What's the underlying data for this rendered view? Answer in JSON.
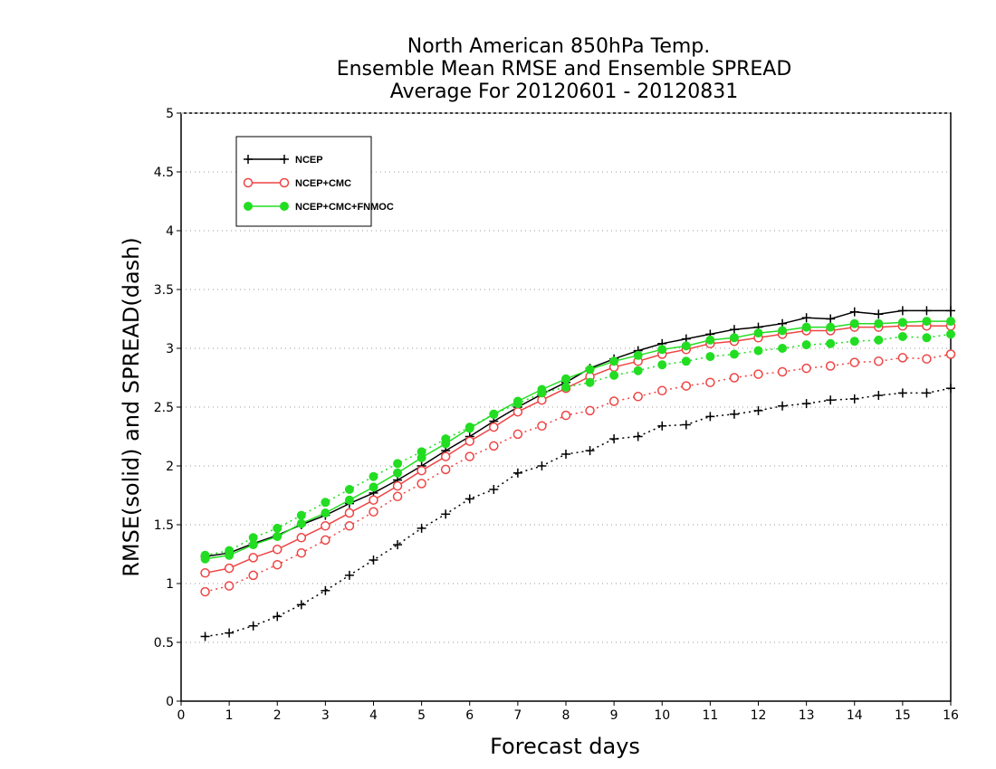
{
  "chart_data": {
    "type": "line",
    "title_lines": [
      "North American 850hPa Temp.",
      "Ensemble Mean RMSE and Ensemble SPREAD",
      "Average For 20120601 - 20120831"
    ],
    "xlabel": "Forecast days",
    "ylabel": "RMSE(solid) and SPREAD(dash)",
    "xlim": [
      0,
      16
    ],
    "ylim": [
      0,
      5
    ],
    "x_ticks": [
      "0",
      "1",
      "2",
      "3",
      "4",
      "5",
      "6",
      "7",
      "8",
      "9",
      "10",
      "11",
      "12",
      "13",
      "14",
      "15",
      "16"
    ],
    "y_ticks": [
      "0",
      "0.5",
      "1",
      "1.5",
      "2",
      "2.5",
      "3",
      "3.5",
      "4",
      "4.5",
      "5"
    ],
    "grid": "horizontal dotted",
    "legend_position": "top-left",
    "x": [
      0.5,
      1,
      1.5,
      2,
      2.5,
      3,
      3.5,
      4,
      4.5,
      5,
      5.5,
      6,
      6.5,
      7,
      7.5,
      8,
      8.5,
      9,
      9.5,
      10,
      10.5,
      11,
      11.5,
      12,
      12.5,
      13,
      13.5,
      14,
      14.5,
      15,
      15.5,
      16
    ],
    "series": [
      {
        "name": "NCEP",
        "color": "#000000",
        "marker": "plus",
        "rmse": [
          1.23,
          1.26,
          1.34,
          1.41,
          1.5,
          1.58,
          1.68,
          1.77,
          1.88,
          2.0,
          2.13,
          2.25,
          2.38,
          2.5,
          2.61,
          2.71,
          2.83,
          2.91,
          2.98,
          3.04,
          3.08,
          3.12,
          3.16,
          3.18,
          3.21,
          3.26,
          3.25,
          3.31,
          3.29,
          3.32,
          3.32,
          3.32
        ],
        "spread": [
          0.55,
          0.58,
          0.64,
          0.72,
          0.82,
          0.94,
          1.07,
          1.2,
          1.33,
          1.47,
          1.59,
          1.72,
          1.8,
          1.94,
          2.0,
          2.1,
          2.13,
          2.23,
          2.25,
          2.34,
          2.35,
          2.42,
          2.44,
          2.47,
          2.51,
          2.53,
          2.56,
          2.57,
          2.6,
          2.62,
          2.62,
          2.66
        ]
      },
      {
        "name": "NCEP+CMC",
        "color": "#ee4444",
        "marker": "open-circle",
        "rmse": [
          1.09,
          1.13,
          1.22,
          1.29,
          1.39,
          1.49,
          1.6,
          1.71,
          1.83,
          1.96,
          2.08,
          2.21,
          2.33,
          2.46,
          2.56,
          2.66,
          2.76,
          2.84,
          2.89,
          2.95,
          2.99,
          3.04,
          3.06,
          3.09,
          3.12,
          3.15,
          3.15,
          3.18,
          3.18,
          3.19,
          3.19,
          3.19
        ],
        "spread": [
          0.93,
          0.98,
          1.07,
          1.16,
          1.26,
          1.37,
          1.49,
          1.61,
          1.74,
          1.85,
          1.97,
          2.08,
          2.17,
          2.27,
          2.34,
          2.43,
          2.47,
          2.55,
          2.59,
          2.64,
          2.68,
          2.71,
          2.75,
          2.78,
          2.8,
          2.83,
          2.85,
          2.88,
          2.89,
          2.92,
          2.91,
          2.95
        ]
      },
      {
        "name": "NCEP+CMC+FNMOC",
        "color": "#22dd22",
        "marker": "filled-circle",
        "rmse": [
          1.21,
          1.24,
          1.33,
          1.4,
          1.51,
          1.6,
          1.71,
          1.82,
          1.94,
          2.07,
          2.19,
          2.32,
          2.44,
          2.55,
          2.65,
          2.74,
          2.82,
          2.89,
          2.94,
          2.99,
          3.02,
          3.07,
          3.09,
          3.13,
          3.15,
          3.18,
          3.18,
          3.21,
          3.21,
          3.22,
          3.23,
          3.23
        ],
        "spread": [
          1.24,
          1.28,
          1.39,
          1.47,
          1.58,
          1.69,
          1.8,
          1.91,
          2.02,
          2.12,
          2.23,
          2.33,
          2.44,
          2.53,
          2.62,
          2.67,
          2.71,
          2.77,
          2.81,
          2.86,
          2.89,
          2.93,
          2.95,
          2.98,
          3.0,
          3.03,
          3.04,
          3.06,
          3.07,
          3.1,
          3.09,
          3.12
        ]
      }
    ]
  }
}
